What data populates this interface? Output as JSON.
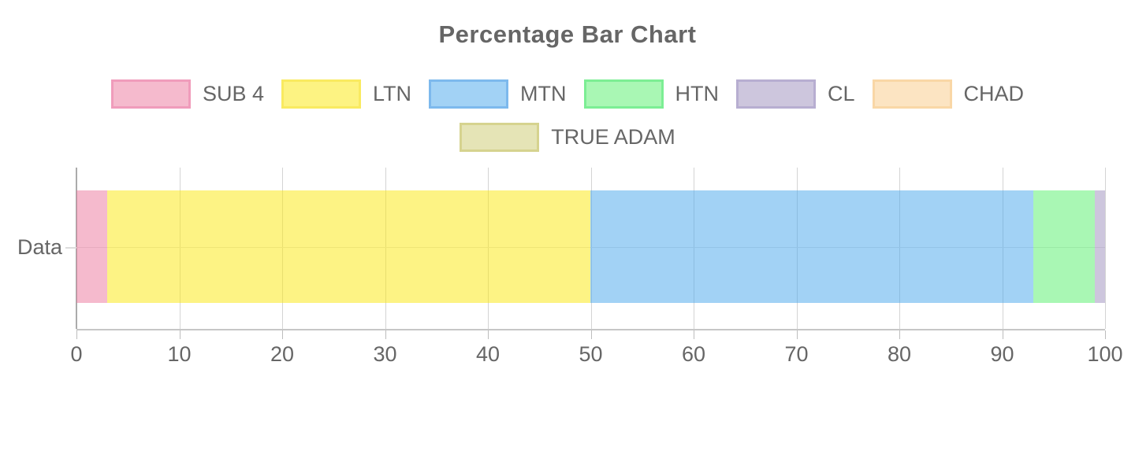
{
  "title": "Percentage Bar Chart",
  "y_axis": {
    "category_label": "Data"
  },
  "chart_data": {
    "type": "bar",
    "orientation": "horizontal",
    "stacked": true,
    "percentage": true,
    "title": "Percentage Bar Chart",
    "categories": [
      "Data"
    ],
    "series": [
      {
        "name": "SUB 4",
        "values": [
          3
        ],
        "fill": "rgba(235,117,155,0.5)",
        "fill_hex": "#f5bacd",
        "border": "#f09cbb"
      },
      {
        "name": "LTN",
        "values": [
          47
        ],
        "fill": "rgba(251,231,9,0.5)",
        "fill_hex": "#fdf382",
        "border": "#f9ea60"
      },
      {
        "name": "MTN",
        "values": [
          43
        ],
        "fill": "rgba(69,165,235,0.5)",
        "fill_hex": "#a2d2f5",
        "border": "#7db9ed"
      },
      {
        "name": "HTN",
        "values": [
          6
        ],
        "fill": "rgba(83,239,105,0.5)",
        "fill_hex": "#a9f7b4",
        "border": "#7cee94"
      },
      {
        "name": "CL",
        "values": [
          1
        ],
        "fill": "rgba(155,141,187,0.5)",
        "fill_hex": "#cdc6dd",
        "border": "#b7aed1"
      },
      {
        "name": "CHAD",
        "values": [
          0
        ],
        "fill": "rgba(249,201,137,0.5)",
        "fill_hex": "#fce4c2",
        "border": "#f9d7a6"
      },
      {
        "name": "TRUE ADAM",
        "values": [
          0
        ],
        "fill": "rgba(203,201,109,0.5)",
        "fill_hex": "#e5e4b6",
        "border": "#d6d38f"
      }
    ],
    "xlabel": "",
    "ylabel": "",
    "xlim": [
      0,
      100
    ],
    "x_ticks": [
      0,
      10,
      20,
      30,
      40,
      50,
      60,
      70,
      80,
      90,
      100
    ],
    "grid": true,
    "legend_position": "top",
    "legend_rows": [
      [
        "SUB 4",
        "LTN",
        "MTN",
        "HTN",
        "CL",
        "CHAD"
      ],
      [
        "TRUE ADAM"
      ]
    ],
    "text_color": "#666666"
  }
}
